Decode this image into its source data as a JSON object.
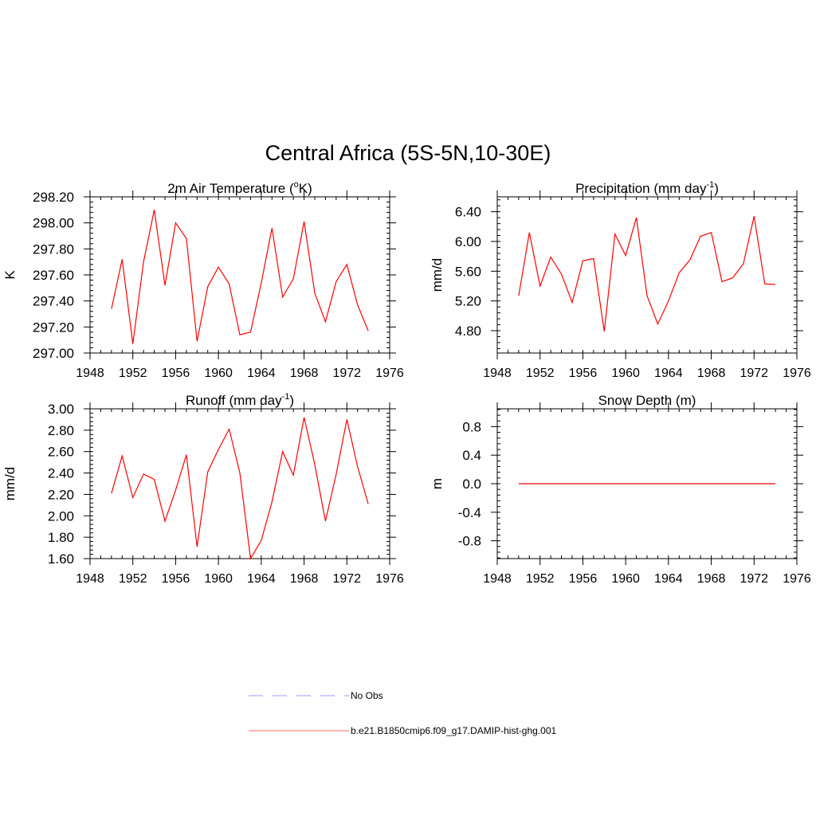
{
  "title": "Central Africa (5S-5N,10-30E)",
  "legend": {
    "items": [
      {
        "label": "No Obs",
        "color": "#9999ff",
        "dash": "dashed"
      },
      {
        "label": "b.e21.B1850cmip6.f09_g17.DAMIP-hist-ghg.001",
        "color": "#ff6666",
        "dash": "solid"
      }
    ]
  },
  "chart_data": [
    {
      "type": "line",
      "title": "2m Air Temperature (oK)",
      "title_parts": [
        {
          "t": "2m Air Temperature ("
        },
        {
          "t": "o",
          "sup": true
        },
        {
          "t": "K)"
        }
      ],
      "ylabel": "K",
      "xlim": [
        1948,
        1976
      ],
      "ylim": [
        297.0,
        298.2
      ],
      "xticks": [
        1948,
        1952,
        1956,
        1960,
        1964,
        1968,
        1972,
        1976
      ],
      "yticks": [
        "297.00",
        "297.20",
        "297.40",
        "297.60",
        "297.80",
        "298.00",
        "298.20"
      ],
      "series": [
        {
          "color": "#ff0000",
          "x": [
            1950,
            1951,
            1952,
            1953,
            1954,
            1955,
            1956,
            1957,
            1958,
            1959,
            1960,
            1961,
            1962,
            1963,
            1964,
            1965,
            1966,
            1967,
            1968,
            1969,
            1970,
            1971,
            1972,
            1973,
            1974
          ],
          "y": [
            297.34,
            297.72,
            297.07,
            297.7,
            298.1,
            297.52,
            298.0,
            297.88,
            297.09,
            297.51,
            297.66,
            297.53,
            297.14,
            297.16,
            297.54,
            297.96,
            297.43,
            297.57,
            298.01,
            297.46,
            297.24,
            297.55,
            297.68,
            297.37,
            297.17
          ]
        }
      ]
    },
    {
      "type": "line",
      "title": "Precipitation (mm day-1)",
      "title_parts": [
        {
          "t": "Precipitation (mm day"
        },
        {
          "t": "-1",
          "sup": true
        },
        {
          "t": ")"
        }
      ],
      "ylabel": "mm/d",
      "xlim": [
        1948,
        1976
      ],
      "ylim": [
        4.5,
        6.6
      ],
      "xticks": [
        1948,
        1952,
        1956,
        1960,
        1964,
        1968,
        1972,
        1976
      ],
      "yticks": [
        "4.80",
        "5.20",
        "5.60",
        "6.00",
        "6.40"
      ],
      "series": [
        {
          "color": "#ff0000",
          "x": [
            1950,
            1951,
            1952,
            1953,
            1954,
            1955,
            1956,
            1957,
            1958,
            1959,
            1960,
            1961,
            1962,
            1963,
            1964,
            1965,
            1966,
            1967,
            1968,
            1969,
            1970,
            1971,
            1972,
            1973,
            1974
          ],
          "y": [
            5.27,
            6.12,
            5.4,
            5.79,
            5.56,
            5.18,
            5.74,
            5.77,
            4.79,
            6.1,
            5.81,
            6.32,
            5.27,
            4.89,
            5.2,
            5.58,
            5.75,
            6.07,
            6.12,
            5.46,
            5.51,
            5.7,
            6.34,
            5.43,
            5.42
          ]
        }
      ]
    },
    {
      "type": "line",
      "title": "Runoff (mm day-1)",
      "title_parts": [
        {
          "t": "Runoff (mm day"
        },
        {
          "t": "-1",
          "sup": true
        },
        {
          "t": ")"
        }
      ],
      "ylabel": "mm/d",
      "xlim": [
        1948,
        1976
      ],
      "ylim": [
        1.6,
        3.0
      ],
      "xticks": [
        1948,
        1952,
        1956,
        1960,
        1964,
        1968,
        1972,
        1976
      ],
      "yticks": [
        "1.60",
        "1.80",
        "2.00",
        "2.20",
        "2.40",
        "2.60",
        "2.80",
        "3.00"
      ],
      "series": [
        {
          "color": "#ff0000",
          "x": [
            1950,
            1951,
            1952,
            1953,
            1954,
            1955,
            1956,
            1957,
            1958,
            1959,
            1960,
            1961,
            1962,
            1963,
            1964,
            1965,
            1966,
            1967,
            1968,
            1969,
            1970,
            1971,
            1972,
            1973,
            1974
          ],
          "y": [
            2.21,
            2.56,
            2.17,
            2.39,
            2.34,
            1.95,
            2.24,
            2.57,
            1.71,
            2.41,
            2.62,
            2.81,
            2.4,
            1.6,
            1.77,
            2.13,
            2.6,
            2.38,
            2.92,
            2.48,
            1.95,
            2.39,
            2.9,
            2.46,
            2.11
          ]
        }
      ]
    },
    {
      "type": "line",
      "title": "Snow Depth (m)",
      "title_parts": [
        {
          "t": "Snow Depth (m)"
        }
      ],
      "ylabel": "m",
      "xlim": [
        1948,
        1976
      ],
      "ylim": [
        -1.05,
        1.05
      ],
      "xticks": [
        1948,
        1952,
        1956,
        1960,
        1964,
        1968,
        1972,
        1976
      ],
      "yticks": [
        "-0.8",
        "-0.4",
        "0.0",
        "0.4",
        "0.8"
      ],
      "series": [
        {
          "color": "#ff0000",
          "x": [
            1950,
            1974
          ],
          "y": [
            0.0,
            0.0
          ]
        }
      ]
    }
  ]
}
